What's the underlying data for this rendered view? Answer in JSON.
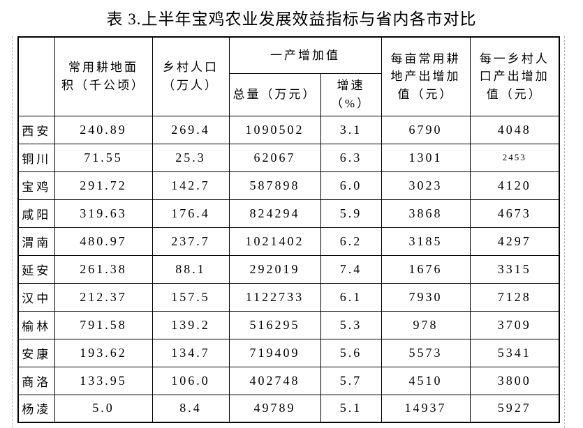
{
  "page": {
    "title": "表 3.上半年宝鸡农业发展效益指标与省内各市对比"
  },
  "colors": {
    "background": "#ffffff",
    "text": "#000000",
    "table_border": "#000000",
    "margin_guide": "#b4b4b4"
  },
  "table": {
    "corner_label": "",
    "headers": {
      "land_area": "常用耕地面\n积（千公顷）",
      "rural_pop": "乡村人口\n（万人）",
      "primary_industry_group": "一产增加值",
      "output_total": "总量（万元）",
      "growth": "增速\n（%）",
      "per_mu": "每亩常用耕\n地产出增加\n值（元）",
      "per_capita": "每一乡村人\n口产出增加\n值（元）"
    },
    "rows": [
      {
        "city": "西安",
        "land_area": "240.89",
        "rural_pop": "269.4",
        "output_total": "1090502",
        "growth": "3.1",
        "per_mu": "6790",
        "per_capita": "4048"
      },
      {
        "city": "铜川",
        "land_area": "71.55",
        "rural_pop": "25.3",
        "output_total": "62067",
        "growth": "6.3",
        "per_mu": "1301",
        "per_capita": "2453",
        "small_cells": [
          "per_capita"
        ]
      },
      {
        "city": "宝鸡",
        "land_area": "291.72",
        "rural_pop": "142.7",
        "output_total": "587898",
        "growth": "6.0",
        "per_mu": "3023",
        "per_capita": "4120"
      },
      {
        "city": "咸阳",
        "land_area": "319.63",
        "rural_pop": "176.4",
        "output_total": "824294",
        "growth": "5.9",
        "per_mu": "3868",
        "per_capita": "4673"
      },
      {
        "city": "渭南",
        "land_area": "480.97",
        "rural_pop": "237.7",
        "output_total": "1021402",
        "growth": "6.2",
        "per_mu": "3185",
        "per_capita": "4297"
      },
      {
        "city": "延安",
        "land_area": "261.38",
        "rural_pop": "88.1",
        "output_total": "292019",
        "growth": "7.4",
        "per_mu": "1676",
        "per_capita": "3315"
      },
      {
        "city": "汉中",
        "land_area": "212.37",
        "rural_pop": "157.5",
        "output_total": "1122733",
        "growth": "6.1",
        "per_mu": "7930",
        "per_capita": "7128"
      },
      {
        "city": "榆林",
        "land_area": "791.58",
        "rural_pop": "139.2",
        "output_total": "516295",
        "growth": "5.3",
        "per_mu": "978",
        "per_capita": "3709"
      },
      {
        "city": "安康",
        "land_area": "193.62",
        "rural_pop": "134.7",
        "output_total": "719409",
        "growth": "5.6",
        "per_mu": "5573",
        "per_capita": "5341"
      },
      {
        "city": "商洛",
        "land_area": "133.95",
        "rural_pop": "106.0",
        "output_total": "402748",
        "growth": "5.7",
        "per_mu": "4510",
        "per_capita": "3800"
      },
      {
        "city": "杨凌",
        "land_area": "5.0",
        "rural_pop": "8.4",
        "output_total": "49789",
        "growth": "5.1",
        "per_mu": "14937",
        "per_capita": "5927"
      }
    ]
  }
}
